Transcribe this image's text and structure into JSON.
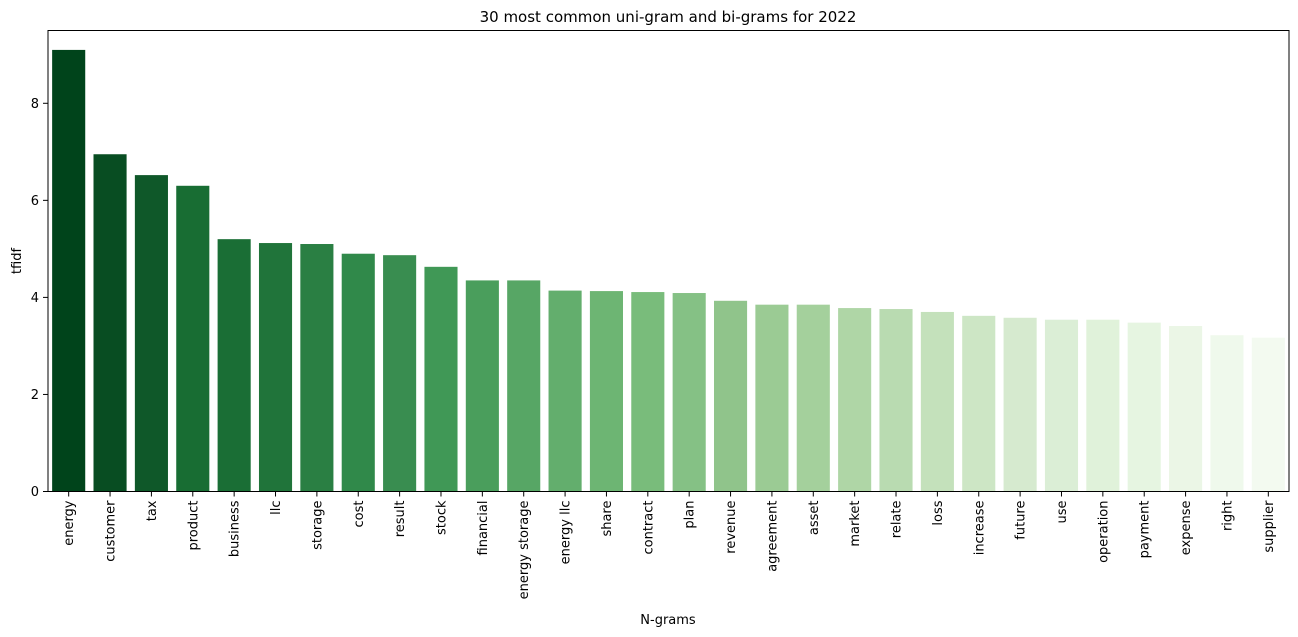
{
  "chart_data": {
    "type": "bar",
    "title": "30 most common uni-gram and bi-grams for 2022",
    "xlabel": "N-grams",
    "ylabel": "tfidf",
    "ylim": [
      0,
      9.5
    ],
    "yticks": [
      "0",
      "2",
      "4",
      "6",
      "8"
    ],
    "grid": false,
    "categories": [
      "energy",
      "customer",
      "tax",
      "product",
      "business",
      "llc",
      "storage",
      "cost",
      "result",
      "stock",
      "financial",
      "energy storage",
      "energy llc",
      "share",
      "contract",
      "plan",
      "revenue",
      "agreement",
      "asset",
      "market",
      "relate",
      "loss",
      "increase",
      "future",
      "use",
      "operation",
      "payment",
      "expense",
      "right",
      "supplier"
    ],
    "values": [
      9.1,
      6.95,
      6.52,
      6.3,
      5.2,
      5.12,
      5.1,
      4.9,
      4.87,
      4.63,
      4.35,
      4.35,
      4.14,
      4.13,
      4.11,
      4.09,
      3.93,
      3.85,
      3.85,
      3.78,
      3.76,
      3.7,
      3.62,
      3.58,
      3.54,
      3.54,
      3.48,
      3.41,
      3.22,
      3.17
    ],
    "colors": [
      "#00441b",
      "#084d22",
      "#0f5829",
      "#186d33",
      "#1a6e35",
      "#20743a",
      "#2a7f43",
      "#30894a",
      "#398d50",
      "#409856",
      "#4a9e5c",
      "#57a665",
      "#63ae6d",
      "#6db573",
      "#79bc7b",
      "#85c185",
      "#90c48b",
      "#9bcb94",
      "#a4d09c",
      "#afd6a6",
      "#b9dbb1",
      "#c4e1bb",
      "#cde6c5",
      "#d6eacf",
      "#dbeed6",
      "#e0f2da",
      "#e6f5e1",
      "#ebf6e6",
      "#eff9ec",
      "#f3faf0"
    ]
  }
}
